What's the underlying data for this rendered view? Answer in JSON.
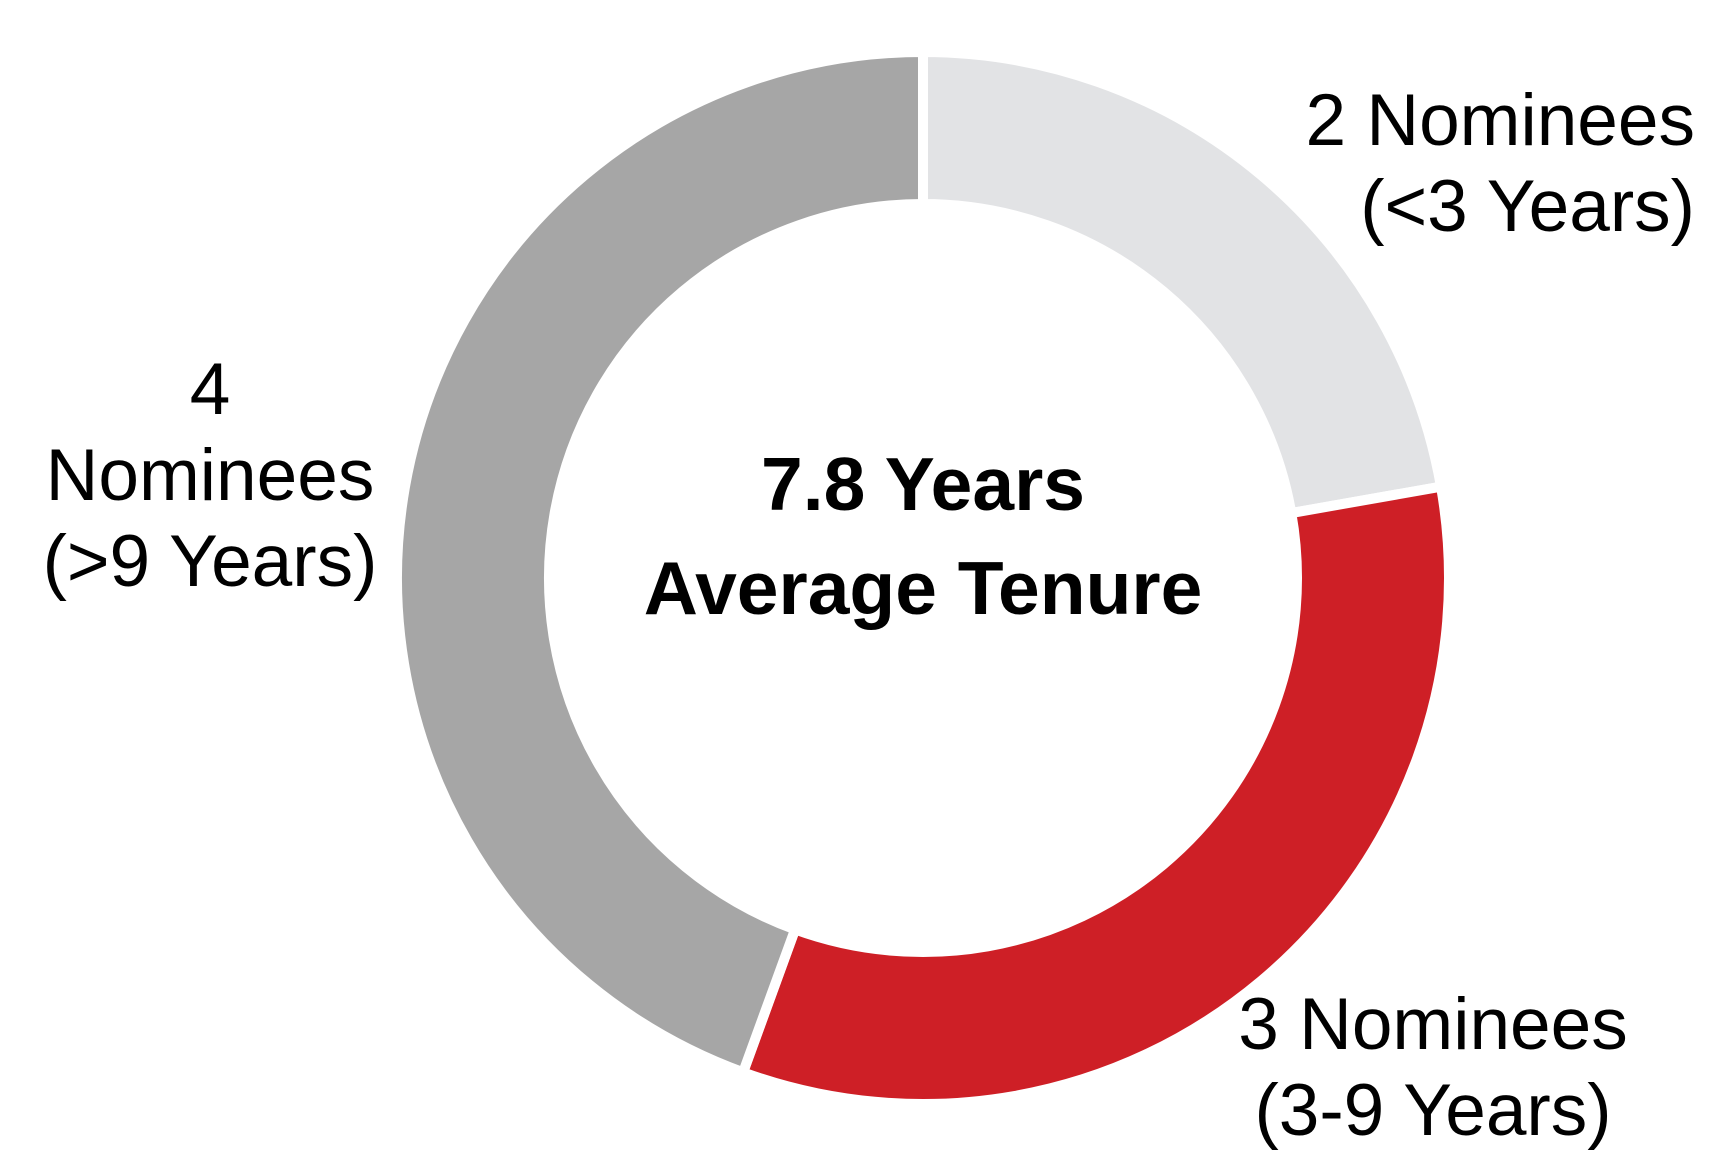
{
  "chart_data": {
    "type": "pie",
    "subtype": "donut",
    "title": "",
    "center_label": {
      "line1": "7.8 Years",
      "line2": "Average",
      "line3": "Tenure"
    },
    "start_angle_deg": 0,
    "direction": "clockwise",
    "inner_radius_ratio": 0.72,
    "gap_color": "#FFFFFF",
    "total": 9,
    "segments": [
      {
        "name": "under-3-years",
        "value": 2,
        "color": "#E2E3E5",
        "label_line1": "2 Nominees",
        "label_line2": "(<3 Years)"
      },
      {
        "name": "3-9-years",
        "value": 3,
        "color": "#CE1F26",
        "label_line1": "3 Nominees",
        "label_line2": "(3-9 Years)"
      },
      {
        "name": "over-9-years",
        "value": 4,
        "color": "#A6A6A6",
        "label_line1": "4 Nominees",
        "label_line2": "(>9 Years)"
      }
    ]
  }
}
